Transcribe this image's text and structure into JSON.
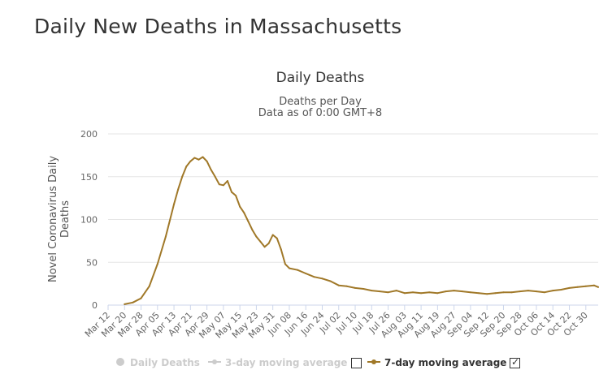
{
  "page": {
    "title": "Daily New Deaths in Massachusetts"
  },
  "chart_data": {
    "type": "line",
    "title": "Daily Deaths",
    "subtitle_line1": "Deaths per Day",
    "subtitle_line2": "Data as of 0:00 GMT+8",
    "ylabel_line1": "Novel Coronavirus Daily",
    "ylabel_line2": "Deaths",
    "xlabel": "",
    "ylim": [
      0,
      200
    ],
    "yticks": [
      0,
      50,
      100,
      150,
      200
    ],
    "x_start": "Mar 12",
    "x_end": "Nov 5",
    "x_tick_labels": [
      "Mar 12",
      "Mar 20",
      "Mar 28",
      "Apr 05",
      "Apr 13",
      "Apr 21",
      "Apr 29",
      "May 07",
      "May 15",
      "May 23",
      "May 31",
      "Jun 08",
      "Jun 16",
      "Jun 24",
      "Jul 02",
      "Jul 10",
      "Jul 18",
      "Jul 26",
      "Aug 03",
      "Aug 11",
      "Aug 19",
      "Aug 27",
      "Sep 04",
      "Sep 12",
      "Sep 20",
      "Sep 28",
      "Oct 06",
      "Oct 14",
      "Oct 22",
      "Oct 30"
    ],
    "grid": true,
    "legend_position": "bottom",
    "legend": [
      {
        "name": "Daily Deaths",
        "visible": false,
        "color": "#cccccc"
      },
      {
        "name": "3-day moving average",
        "visible": false,
        "color": "#cccccc"
      },
      {
        "name": "7-day moving average",
        "visible": true,
        "color": "#a07828"
      }
    ],
    "series": [
      {
        "name": "7-day moving average",
        "color": "#a07828",
        "x": [
          "Mar 20",
          "Mar 24",
          "Mar 28",
          "Apr 01",
          "Apr 05",
          "Apr 09",
          "Apr 13",
          "Apr 15",
          "Apr 17",
          "Apr 19",
          "Apr 21",
          "Apr 23",
          "Apr 25",
          "Apr 27",
          "Apr 29",
          "May 01",
          "May 03",
          "May 05",
          "May 07",
          "May 09",
          "May 11",
          "May 13",
          "May 15",
          "May 17",
          "May 19",
          "May 21",
          "May 23",
          "May 25",
          "May 27",
          "May 29",
          "May 31",
          "Jun 02",
          "Jun 04",
          "Jun 06",
          "Jun 08",
          "Jun 12",
          "Jun 16",
          "Jun 20",
          "Jun 24",
          "Jun 28",
          "Jul 02",
          "Jul 06",
          "Jul 10",
          "Jul 14",
          "Jul 18",
          "Jul 22",
          "Jul 26",
          "Jul 30",
          "Aug 03",
          "Aug 07",
          "Aug 11",
          "Aug 15",
          "Aug 19",
          "Aug 23",
          "Aug 27",
          "Aug 31",
          "Sep 04",
          "Sep 08",
          "Sep 12",
          "Sep 16",
          "Sep 20",
          "Sep 24",
          "Sep 28",
          "Oct 02",
          "Oct 06",
          "Oct 10",
          "Oct 14",
          "Oct 18",
          "Oct 22",
          "Oct 26",
          "Oct 30",
          "Nov 03",
          "Nov 05"
        ],
        "values": [
          1,
          3,
          8,
          22,
          48,
          80,
          118,
          135,
          150,
          162,
          168,
          172,
          170,
          173,
          168,
          158,
          150,
          141,
          140,
          145,
          132,
          128,
          115,
          108,
          98,
          88,
          80,
          74,
          68,
          72,
          82,
          78,
          65,
          48,
          43,
          41,
          37,
          33,
          31,
          28,
          23,
          22,
          20,
          19,
          17,
          16,
          15,
          17,
          14,
          15,
          14,
          15,
          14,
          16,
          17,
          16,
          15,
          14,
          13,
          14,
          15,
          15,
          16,
          17,
          16,
          15,
          17,
          18,
          20,
          21,
          22,
          23,
          21
        ]
      }
    ]
  }
}
